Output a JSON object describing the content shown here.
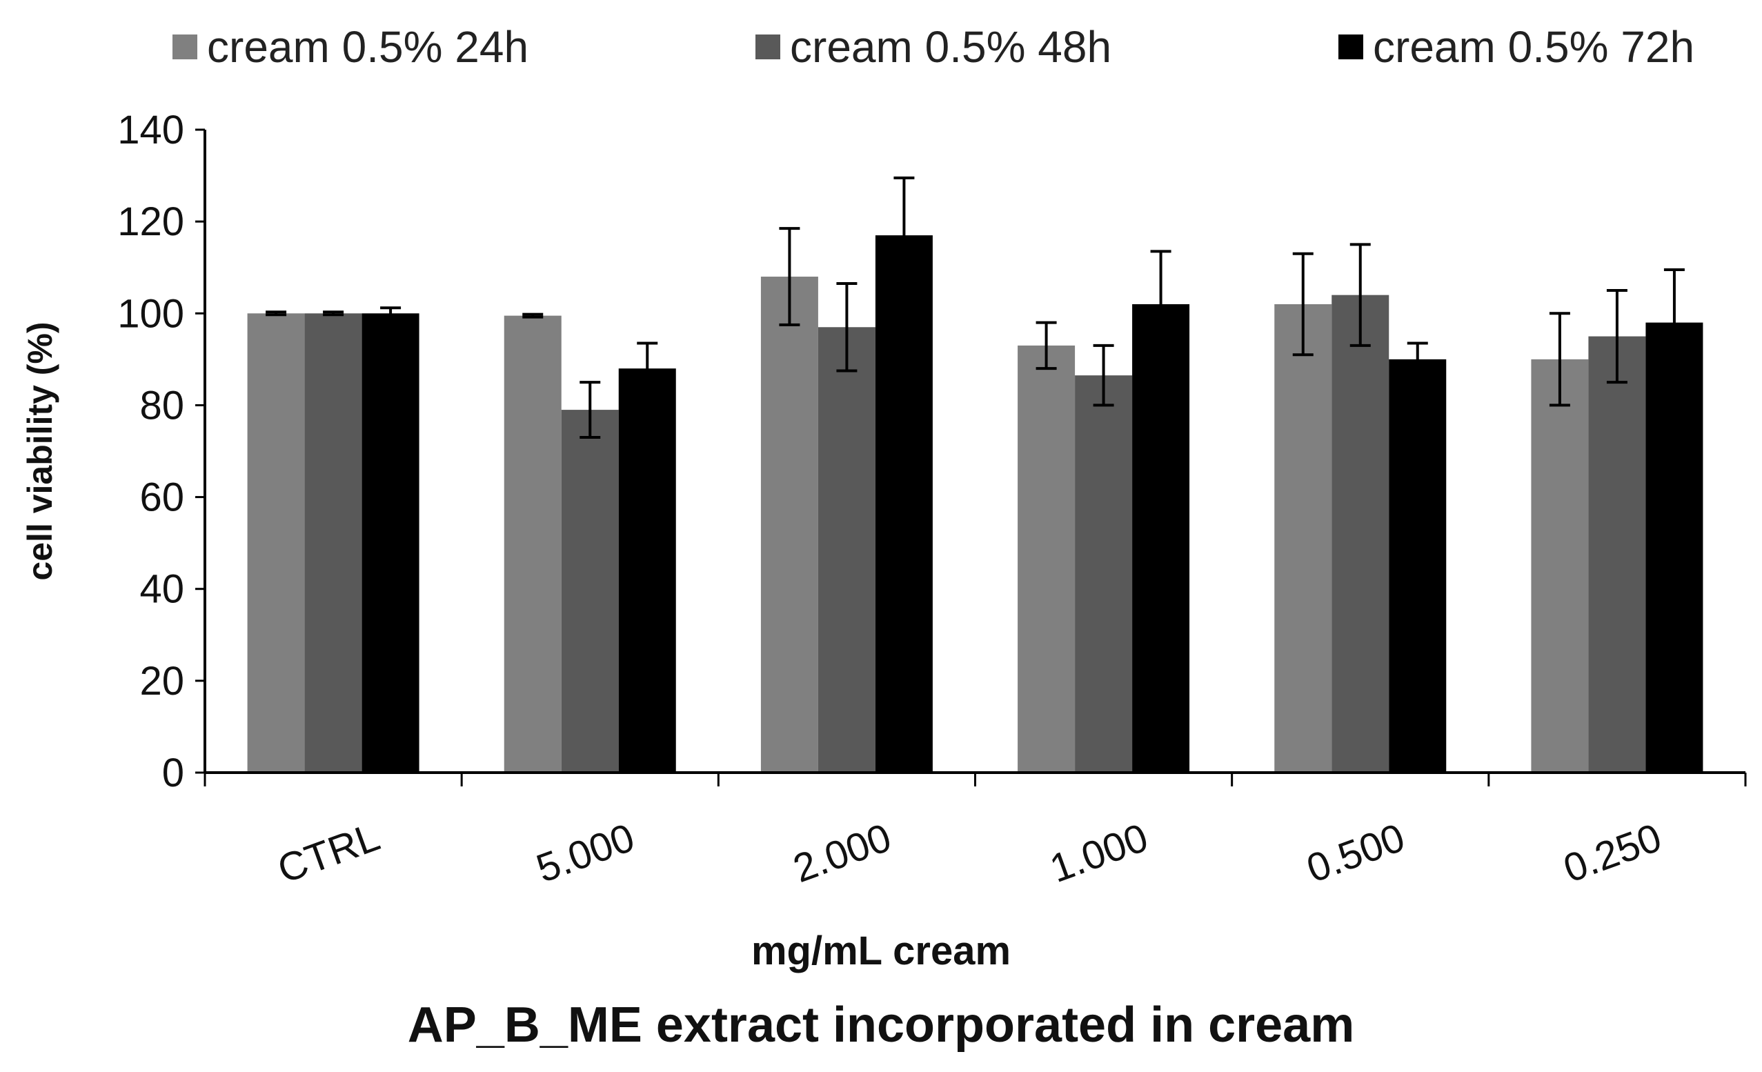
{
  "chart_data": {
    "type": "bar",
    "title": "AP_B_ME extract incorporated in cream",
    "xlabel": "mg/mL cream",
    "ylabel": "cell viability (%)",
    "ylim": [
      0,
      140
    ],
    "yticks": [
      0,
      20,
      40,
      60,
      80,
      100,
      120,
      140
    ],
    "categories": [
      "CTRL",
      "5.000",
      "2.000",
      "1.000",
      "0.500",
      "0.250"
    ],
    "legend_position": "top",
    "grid": false,
    "series": [
      {
        "name": "cream 0.5% 24h",
        "color": "#808080",
        "values": [
          100,
          99.5,
          108,
          93,
          102,
          90
        ],
        "errors": [
          0.3,
          0.3,
          10.5,
          5,
          11,
          10
        ]
      },
      {
        "name": "cream 0.5% 48h",
        "color": "#595959",
        "values": [
          100,
          79,
          97,
          86.5,
          104,
          95
        ],
        "errors": [
          0.3,
          6,
          9.5,
          6.5,
          11,
          10
        ]
      },
      {
        "name": "cream 0.5% 72h",
        "color": "#000000",
        "values": [
          100,
          88,
          117,
          102,
          90,
          98
        ],
        "errors": [
          1.2,
          5.5,
          12.5,
          11.5,
          3.5,
          11.5
        ]
      }
    ]
  }
}
